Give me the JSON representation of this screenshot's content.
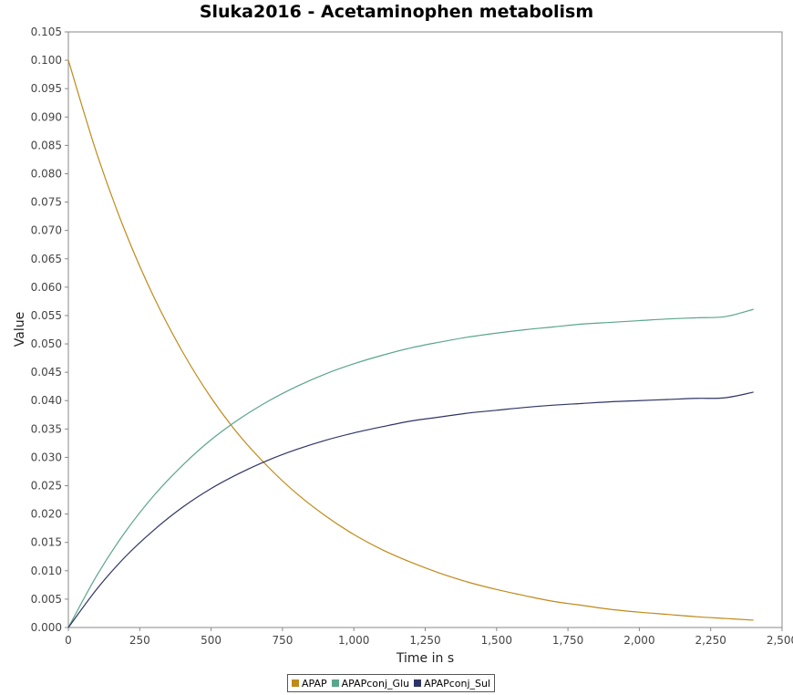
{
  "chart_data": {
    "type": "line",
    "title": "Sluka2016 - Acetaminophen metabolism",
    "xlabel": "Time in s",
    "ylabel": "Value",
    "xlim": [
      0,
      2500
    ],
    "ylim": [
      0,
      0.105
    ],
    "x_ticks": [
      "0",
      "250",
      "500",
      "750",
      "1,000",
      "1,250",
      "1,500",
      "1,750",
      "2,000",
      "2,250",
      "2,500"
    ],
    "y_ticks": [
      "0.000",
      "0.005",
      "0.010",
      "0.015",
      "0.020",
      "0.025",
      "0.030",
      "0.035",
      "0.040",
      "0.045",
      "0.050",
      "0.055",
      "0.060",
      "0.065",
      "0.070",
      "0.075",
      "0.080",
      "0.085",
      "0.090",
      "0.095",
      "0.100",
      "0.105"
    ],
    "grid": false,
    "legend_position": "bottom-center",
    "x": [
      0,
      100,
      200,
      300,
      400,
      500,
      600,
      700,
      800,
      900,
      1000,
      1100,
      1200,
      1300,
      1400,
      1500,
      1600,
      1700,
      1800,
      1900,
      2000,
      2100,
      2200,
      2300,
      2400
    ],
    "series": [
      {
        "name": "APAP",
        "color": "#c08a19",
        "values": [
          0.1,
          0.0835,
          0.0697,
          0.0582,
          0.0486,
          0.0405,
          0.0338,
          0.0283,
          0.0236,
          0.0197,
          0.0164,
          0.0137,
          0.0115,
          0.0096,
          0.008,
          0.0067,
          0.0056,
          0.0046,
          0.0039,
          0.0032,
          0.0027,
          0.0023,
          0.0019,
          0.0016,
          0.0013
        ]
      },
      {
        "name": "APAPconj_Glu",
        "color": "#5aa68a",
        "values": [
          0.0,
          0.0092,
          0.0169,
          0.0233,
          0.0286,
          0.0331,
          0.0368,
          0.0399,
          0.0425,
          0.0447,
          0.0465,
          0.048,
          0.0493,
          0.0503,
          0.0512,
          0.0519,
          0.0525,
          0.053,
          0.0535,
          0.0538,
          0.0541,
          0.0544,
          0.0546,
          0.0548,
          0.0561
        ]
      },
      {
        "name": "APAPconj_Sul",
        "color": "#2e3566",
        "values": [
          0.0,
          0.0068,
          0.0125,
          0.0172,
          0.0212,
          0.0245,
          0.0272,
          0.0295,
          0.0314,
          0.033,
          0.0343,
          0.0354,
          0.0364,
          0.0371,
          0.0378,
          0.0383,
          0.0388,
          0.0392,
          0.0395,
          0.0398,
          0.04,
          0.0402,
          0.0404,
          0.0405,
          0.0415
        ]
      }
    ]
  }
}
